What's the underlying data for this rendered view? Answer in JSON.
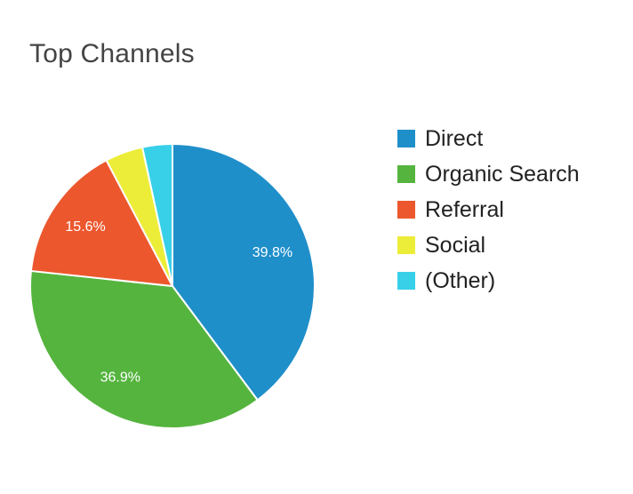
{
  "chart_data": {
    "type": "pie",
    "title": "Top Channels",
    "legend": "right",
    "slices": [
      {
        "name": "Direct",
        "value": 39.8,
        "label": "39.8%",
        "color": "#1f8fca"
      },
      {
        "name": "Organic Search",
        "value": 36.9,
        "label": "36.9%",
        "color": "#55b43e"
      },
      {
        "name": "Referral",
        "value": 15.6,
        "label": "15.6%",
        "color": "#ec572d"
      },
      {
        "name": "Social",
        "value": 4.3,
        "label": "",
        "color": "#eced38"
      },
      {
        "name": "(Other)",
        "value": 3.4,
        "label": "",
        "color": "#38d0e8"
      }
    ]
  }
}
